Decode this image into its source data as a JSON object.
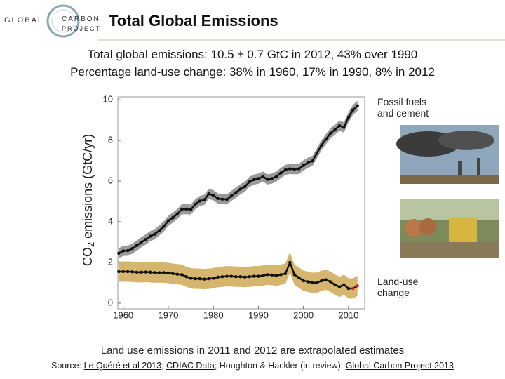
{
  "logo": {
    "line1": "GLOBAL",
    "line2": "CARBON",
    "line3": "PROJECT"
  },
  "header": {
    "title": "Total Global Emissions"
  },
  "subtitle": [
    "Total global emissions: 10.5 ± 0.7 GtC in 2012, 43% over 1990",
    "Percentage land-use change: 38% in 1960, 17% in 1990, 8% in 2012"
  ],
  "chart_data": {
    "type": "line",
    "y_label": {
      "before": "CO",
      "sub": "2",
      "after": " emissions (GtC/yr)"
    },
    "x": [
      1959,
      1960,
      1961,
      1962,
      1963,
      1964,
      1965,
      1966,
      1967,
      1968,
      1969,
      1970,
      1971,
      1972,
      1973,
      1974,
      1975,
      1976,
      1977,
      1978,
      1979,
      1980,
      1981,
      1982,
      1983,
      1984,
      1985,
      1986,
      1987,
      1988,
      1989,
      1990,
      1991,
      1992,
      1993,
      1994,
      1995,
      1996,
      1997,
      1998,
      1999,
      2000,
      2001,
      2002,
      2003,
      2004,
      2005,
      2006,
      2007,
      2008,
      2009,
      2010,
      2011,
      2012
    ],
    "series": [
      {
        "name": "Fossil fuels and cement",
        "color": "#111111",
        "band_color": "#9a9a9a",
        "uncertainty": 0.25,
        "values": [
          2.45,
          2.57,
          2.58,
          2.68,
          2.83,
          2.99,
          3.13,
          3.29,
          3.39,
          3.57,
          3.77,
          4.05,
          4.2,
          4.38,
          4.61,
          4.62,
          4.6,
          4.86,
          5.02,
          5.08,
          5.37,
          5.3,
          5.14,
          5.11,
          5.1,
          5.27,
          5.43,
          5.6,
          5.72,
          5.96,
          6.07,
          6.12,
          6.22,
          6.08,
          6.12,
          6.23,
          6.4,
          6.55,
          6.6,
          6.58,
          6.6,
          6.77,
          6.9,
          6.99,
          7.37,
          7.76,
          8.06,
          8.35,
          8.53,
          8.72,
          8.64,
          9.14,
          9.5,
          9.7
        ]
      },
      {
        "name": "Land-use change",
        "color": "#111111",
        "band_color": "#d6b56e",
        "uncertainty": 0.5,
        "values": [
          1.55,
          1.55,
          1.55,
          1.54,
          1.52,
          1.52,
          1.53,
          1.52,
          1.5,
          1.5,
          1.5,
          1.48,
          1.45,
          1.42,
          1.4,
          1.3,
          1.22,
          1.2,
          1.2,
          1.18,
          1.2,
          1.22,
          1.28,
          1.3,
          1.32,
          1.32,
          1.3,
          1.3,
          1.28,
          1.3,
          1.32,
          1.32,
          1.35,
          1.4,
          1.38,
          1.35,
          1.4,
          1.45,
          2.0,
          1.4,
          1.25,
          1.1,
          1.05,
          1.0,
          1.0,
          1.1,
          1.15,
          1.05,
          0.9,
          0.8,
          0.9,
          0.72,
          0.72,
          0.85
        ]
      }
    ],
    "extrapolated_from": 2011,
    "extrapolated_color": "#cc2a1a",
    "xlim": [
      1958.8,
      2013.6
    ],
    "xticks": [
      1960,
      1970,
      1980,
      1990,
      2000,
      2010
    ],
    "ylim": [
      -0.28,
      10.14
    ],
    "yticks": [
      0,
      2,
      4,
      6,
      8,
      10
    ]
  },
  "note": "Land use emissions in 2011 and 2012 are extrapolated estimates",
  "source": {
    "prefix": "Source: ",
    "link1": "Le Quéré et al 2013",
    "sep1": "; ",
    "link2": "CDIAC Data",
    "sep2": "; Houghton & Hackler (in review); ",
    "link3": "Global Carbon Project 2013"
  }
}
